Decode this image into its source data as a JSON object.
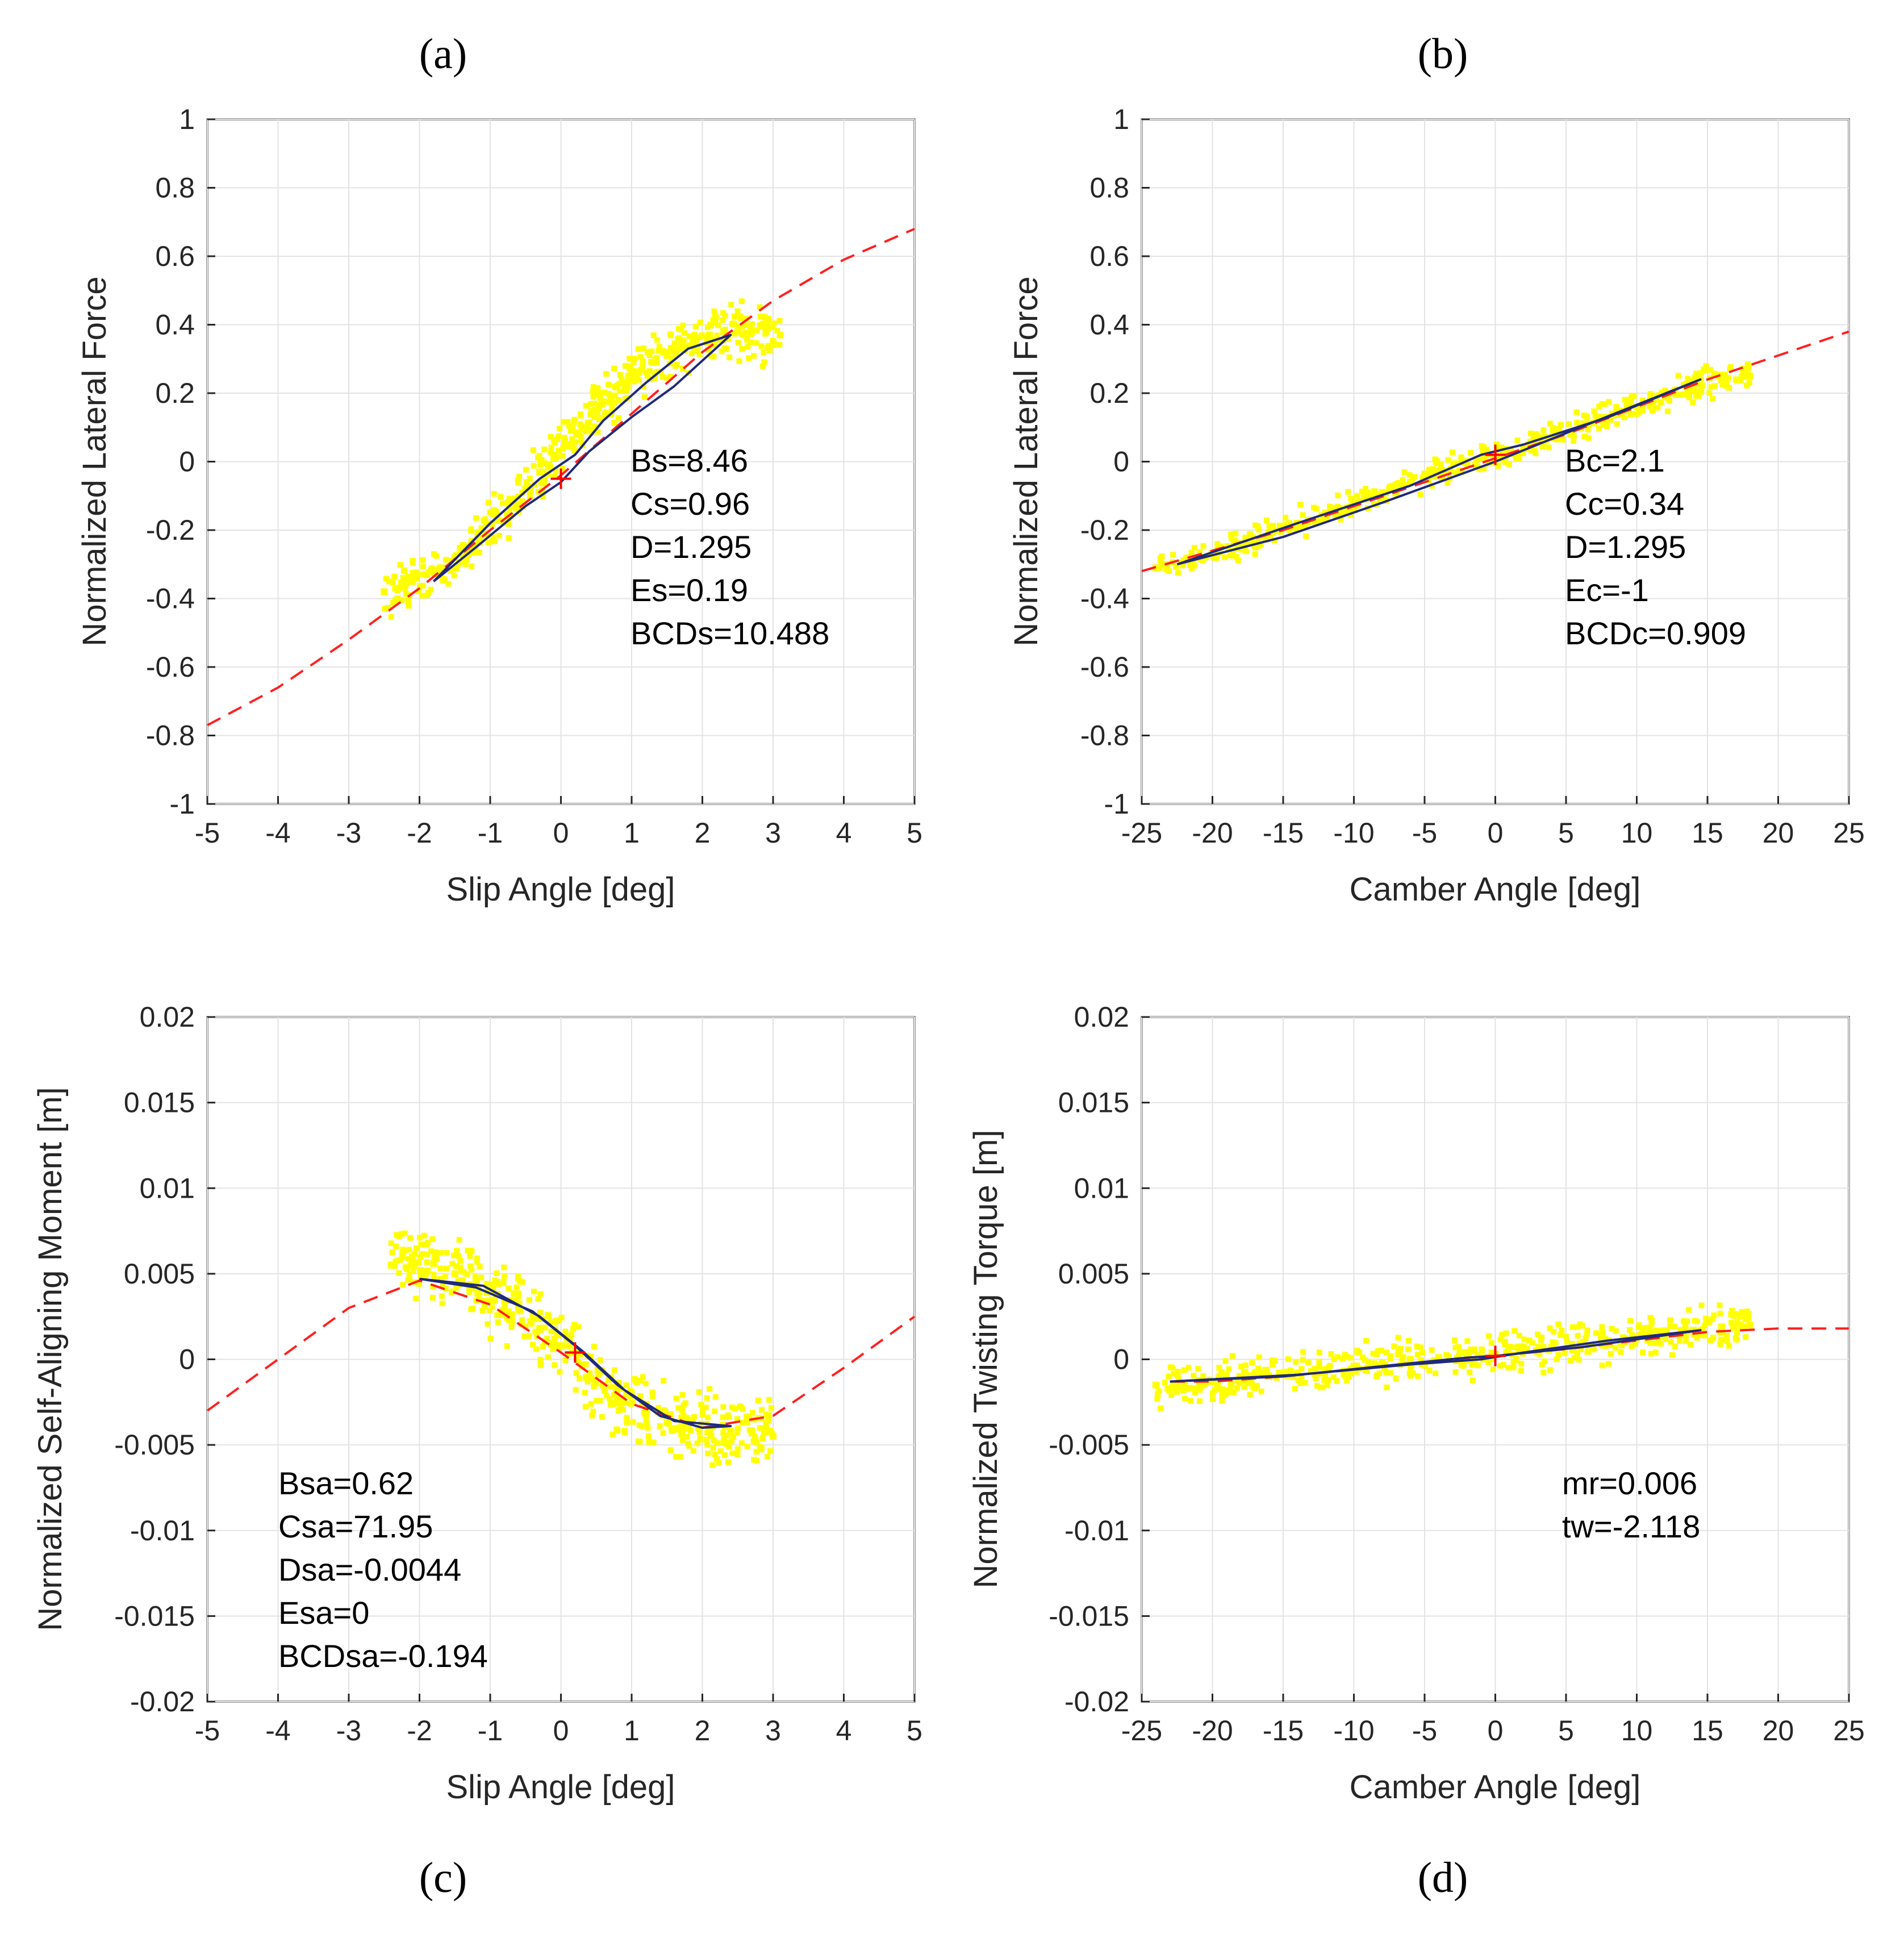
{
  "panels": [
    {
      "id": "a",
      "letter": "(a)",
      "xlabel": "Slip Angle [deg]",
      "ylabel": "Normalized Lateral Force",
      "xlim": [
        -5,
        5
      ],
      "ylim": [
        -1,
        1
      ],
      "xticks": [
        -5,
        -4,
        -3,
        -2,
        -1,
        0,
        1,
        2,
        3,
        4,
        5
      ],
      "yticks": [
        -1,
        -0.8,
        -0.6,
        -0.4,
        -0.2,
        0,
        0.2,
        0.4,
        0.6,
        0.8,
        1
      ],
      "xtick_labels": [
        "-5",
        "-4",
        "-3",
        "-2",
        "-1",
        "0",
        "1",
        "2",
        "3",
        "4",
        "5"
      ],
      "ytick_labels": [
        "-1",
        "-0.8",
        "-0.6",
        "-0.4",
        "-0.2",
        "0",
        "0.2",
        "0.4",
        "0.6",
        "0.8",
        "1"
      ],
      "annotation": [
        "Bs=8.46",
        "Cs=0.96",
        "D=1.295",
        "Es=0.19",
        "BCDs=10.488"
      ]
    },
    {
      "id": "b",
      "letter": "(b)",
      "xlabel": "Camber Angle [deg]",
      "ylabel": "Normalized Lateral Force",
      "xlim": [
        -25,
        25
      ],
      "ylim": [
        -1,
        1
      ],
      "xticks": [
        -25,
        -20,
        -15,
        -10,
        -5,
        0,
        5,
        10,
        15,
        20,
        25
      ],
      "yticks": [
        -1,
        -0.8,
        -0.6,
        -0.4,
        -0.2,
        0,
        0.2,
        0.4,
        0.6,
        0.8,
        1
      ],
      "xtick_labels": [
        "-25",
        "-20",
        "-15",
        "-10",
        "-5",
        "0",
        "5",
        "10",
        "15",
        "20",
        "25"
      ],
      "ytick_labels": [
        "-1",
        "-0.8",
        "-0.6",
        "-0.4",
        "-0.2",
        "0",
        "0.2",
        "0.4",
        "0.6",
        "0.8",
        "1"
      ],
      "annotation": [
        "Bc=2.1",
        "Cc=0.34",
        "D=1.295",
        "Ec=-1",
        "BCDc=0.909"
      ]
    },
    {
      "id": "c",
      "letter": "(c)",
      "xlabel": "Slip Angle [deg]",
      "ylabel": "Normalized Self-Aligning Moment [m]",
      "xlim": [
        -5,
        5
      ],
      "ylim": [
        -0.02,
        0.02
      ],
      "xticks": [
        -5,
        -4,
        -3,
        -2,
        -1,
        0,
        1,
        2,
        3,
        4,
        5
      ],
      "yticks": [
        -0.02,
        -0.015,
        -0.01,
        -0.005,
        0,
        0.005,
        0.01,
        0.015,
        0.02
      ],
      "xtick_labels": [
        "-5",
        "-4",
        "-3",
        "-2",
        "-1",
        "0",
        "1",
        "2",
        "3",
        "4",
        "5"
      ],
      "ytick_labels": [
        "-0.02",
        "-0.015",
        "-0.01",
        "-0.005",
        "0",
        "0.005",
        "0.01",
        "0.015",
        "0.02"
      ],
      "annotation": [
        "Bsa=0.62",
        "Csa=71.95",
        "Dsa=-0.0044",
        "Esa=0",
        "BCDsa=-0.194"
      ]
    },
    {
      "id": "d",
      "letter": "(d)",
      "xlabel": "Camber Angle [deg]",
      "ylabel": "Normalized Twisting Torque [m]",
      "xlim": [
        -25,
        25
      ],
      "ylim": [
        -0.02,
        0.02
      ],
      "xticks": [
        -25,
        -20,
        -15,
        -10,
        -5,
        0,
        5,
        10,
        15,
        20,
        25
      ],
      "yticks": [
        -0.02,
        -0.015,
        -0.01,
        -0.005,
        0,
        0.005,
        0.01,
        0.015,
        0.02
      ],
      "xtick_labels": [
        "-25",
        "-20",
        "-15",
        "-10",
        "-5",
        "0",
        "5",
        "10",
        "15",
        "20",
        "25"
      ],
      "ytick_labels": [
        "-0.02",
        "-0.015",
        "-0.01",
        "-0.005",
        "0",
        "0.005",
        "0.01",
        "0.015",
        "0.02"
      ],
      "annotation": [
        "mr=0.006",
        "tw=-2.118"
      ]
    }
  ],
  "colors": {
    "scatter": "#ffff00",
    "fit": "#ff2020",
    "loop": "#1f2a7a",
    "grid": "#e3e3e3",
    "axes": "#262626",
    "marker": "#ff0000"
  },
  "chart_data": [
    {
      "type": "scatter",
      "panel": "a",
      "xlabel": "Slip Angle [deg]",
      "ylabel": "Normalized Lateral Force",
      "xlim": [
        -5,
        5
      ],
      "ylim": [
        -1,
        1
      ],
      "grid": true,
      "series": [
        {
          "name": "",
          "kind": "scatter",
          "color": "#ffff00",
          "x": [
            -2.5,
            -2.3,
            -2.1,
            -1.9,
            -1.7,
            -1.5,
            -1.3,
            -1.1,
            -0.9,
            -0.7,
            -0.5,
            -0.3,
            -0.1,
            0.1,
            0.3,
            0.5,
            0.7,
            0.9,
            1.1,
            1.3,
            1.5,
            1.7,
            1.9,
            2.1,
            2.3,
            2.5,
            2.7,
            2.9,
            3.1
          ],
          "y": [
            -0.38,
            -0.37,
            -0.35,
            -0.33,
            -0.31,
            -0.28,
            -0.25,
            -0.21,
            -0.17,
            -0.13,
            -0.08,
            -0.03,
            0.01,
            0.05,
            0.1,
            0.15,
            0.19,
            0.23,
            0.26,
            0.29,
            0.31,
            0.33,
            0.35,
            0.37,
            0.38,
            0.38,
            0.38,
            0.38,
            0.37
          ]
        },
        {
          "name": "",
          "kind": "fit-dashed",
          "color": "#ff2020",
          "x": [
            -5,
            -4,
            -3,
            -2,
            -1,
            0,
            1,
            2,
            3,
            4,
            5
          ],
          "y": [
            -0.77,
            -0.66,
            -0.52,
            -0.37,
            -0.2,
            -0.04,
            0.14,
            0.32,
            0.47,
            0.59,
            0.68
          ]
        },
        {
          "name": "",
          "kind": "loop",
          "color": "#1f2a7a",
          "x": [
            -1.8,
            -1.2,
            -0.5,
            0.0,
            0.4,
            1.0,
            1.6,
            2.4,
            1.8,
            1.2,
            0.6,
            0.2,
            -0.3,
            -1.0,
            -1.8
          ],
          "y": [
            -0.35,
            -0.25,
            -0.13,
            -0.06,
            0.03,
            0.13,
            0.22,
            0.37,
            0.33,
            0.23,
            0.12,
            0.02,
            -0.05,
            -0.18,
            -0.35
          ]
        }
      ],
      "markers": [
        {
          "x": 0,
          "y": -0.05
        }
      ],
      "annotation": [
        "Bs=8.46",
        "Cs=0.96",
        "D=1.295",
        "Es=0.19",
        "BCDs=10.488"
      ]
    },
    {
      "type": "scatter",
      "panel": "b",
      "xlabel": "Camber Angle [deg]",
      "ylabel": "Normalized Lateral Force",
      "xlim": [
        -25,
        25
      ],
      "ylim": [
        -1,
        1
      ],
      "grid": true,
      "series": [
        {
          "name": "",
          "kind": "scatter",
          "color": "#ffff00",
          "x": [
            -24,
            -22,
            -20,
            -18,
            -16,
            -14,
            -12,
            -10,
            -8,
            -6,
            -4,
            -2,
            0,
            2,
            4,
            6,
            8,
            10,
            12,
            14,
            16,
            18
          ],
          "y": [
            -0.31,
            -0.29,
            -0.27,
            -0.24,
            -0.21,
            -0.18,
            -0.15,
            -0.12,
            -0.09,
            -0.06,
            -0.03,
            0.0,
            0.02,
            0.04,
            0.07,
            0.1,
            0.13,
            0.16,
            0.19,
            0.22,
            0.24,
            0.25
          ]
        },
        {
          "name": "",
          "kind": "fit-dashed",
          "color": "#ff2020",
          "x": [
            -25,
            -20,
            -15,
            -10,
            -5,
            0,
            5,
            10,
            15,
            20,
            25
          ],
          "y": [
            -0.32,
            -0.26,
            -0.2,
            -0.13,
            -0.06,
            0.01,
            0.08,
            0.16,
            0.24,
            0.31,
            0.38
          ]
        },
        {
          "name": "",
          "kind": "loop",
          "color": "#1f2a7a",
          "x": [
            -22.5,
            -15,
            -8,
            -2,
            0,
            6,
            14.5,
            8,
            2,
            -1,
            -6,
            -14,
            -22.5
          ],
          "y": [
            -0.3,
            -0.22,
            -0.12,
            -0.03,
            0.0,
            0.1,
            0.24,
            0.13,
            0.05,
            0.02,
            -0.07,
            -0.18,
            -0.3
          ]
        }
      ],
      "markers": [
        {
          "x": 0,
          "y": 0.02
        }
      ],
      "annotation": [
        "Bc=2.1",
        "Cc=0.34",
        "D=1.295",
        "Ec=-1",
        "BCDc=0.909"
      ]
    },
    {
      "type": "scatter",
      "panel": "c",
      "xlabel": "Slip Angle [deg]",
      "ylabel": "Normalized Self-Aligning Moment [m]",
      "xlim": [
        -5,
        5
      ],
      "ylim": [
        -0.02,
        0.02
      ],
      "grid": true,
      "series": [
        {
          "name": "",
          "kind": "scatter",
          "color": "#ffff00",
          "x": [
            -2.4,
            -2.1,
            -1.8,
            -1.5,
            -1.2,
            -0.9,
            -0.6,
            -0.3,
            0.0,
            0.3,
            0.6,
            0.9,
            1.2,
            1.5,
            1.8,
            2.1,
            2.4,
            2.7,
            3.0
          ],
          "y": [
            0.0055,
            0.0058,
            0.0056,
            0.005,
            0.0045,
            0.0038,
            0.003,
            0.0018,
            0.0008,
            -0.0004,
            -0.0015,
            -0.0025,
            -0.0032,
            -0.0037,
            -0.004,
            -0.0042,
            -0.0042,
            -0.0043,
            -0.0045
          ]
        },
        {
          "name": "",
          "kind": "fit-dashed",
          "color": "#ff2020",
          "x": [
            -5,
            -4,
            -3,
            -2,
            -1,
            0,
            1,
            2,
            3,
            4,
            5
          ],
          "y": [
            -0.003,
            0.0,
            0.003,
            0.0046,
            0.0032,
            0.0004,
            -0.0026,
            -0.004,
            -0.0033,
            -0.0005,
            0.0025
          ]
        },
        {
          "name": "",
          "kind": "loop",
          "color": "#1f2a7a",
          "x": [
            -2.0,
            -1.2,
            -0.4,
            0.2,
            0.8,
            1.4,
            2.0,
            2.4,
            1.6,
            0.9,
            0.3,
            -0.3,
            -1.1,
            -2.0
          ],
          "y": [
            0.0047,
            0.0042,
            0.0028,
            0.0008,
            -0.0015,
            -0.0033,
            -0.004,
            -0.0039,
            -0.0036,
            -0.0018,
            0.0005,
            0.0025,
            0.0043,
            0.0047
          ]
        }
      ],
      "markers": [
        {
          "x": 0.2,
          "y": 0.0004
        }
      ],
      "annotation": [
        "Bsa=0.62",
        "Csa=71.95",
        "Dsa=-0.0044",
        "Esa=0",
        "BCDsa=-0.194"
      ]
    },
    {
      "type": "scatter",
      "panel": "d",
      "xlabel": "Camber Angle [deg]",
      "ylabel": "Normalized Twisting Torque [m]",
      "xlim": [
        -25,
        25
      ],
      "ylim": [
        -0.02,
        0.02
      ],
      "grid": true,
      "series": [
        {
          "name": "",
          "kind": "scatter",
          "color": "#ffff00",
          "x": [
            -24,
            -22,
            -20,
            -18,
            -16,
            -14,
            -12,
            -10,
            -8,
            -6,
            -4,
            -2,
            0,
            2,
            4,
            6,
            8,
            10,
            12,
            14,
            16,
            18
          ],
          "y": [
            -0.0015,
            -0.0014,
            -0.0013,
            -0.0012,
            -0.001,
            -0.0008,
            -0.0006,
            -0.0004,
            -0.0002,
            0.0,
            0.0001,
            0.0002,
            0.0003,
            0.0005,
            0.0007,
            0.0009,
            0.0011,
            0.0013,
            0.0015,
            0.0017,
            0.0019,
            0.002
          ]
        },
        {
          "name": "",
          "kind": "fit-dashed",
          "color": "#ff2020",
          "x": [
            -23,
            -20,
            -15,
            -10,
            -5,
            0,
            5,
            10,
            15,
            20,
            25
          ],
          "y": [
            -0.0013,
            -0.0013,
            -0.001,
            -0.0006,
            -0.0002,
            0.0002,
            0.0006,
            0.0011,
            0.0016,
            0.0018,
            0.0018
          ]
        },
        {
          "name": "",
          "kind": "loop",
          "color": "#1f2a7a",
          "x": [
            -23,
            -15,
            -8,
            -2,
            0,
            6,
            14.5,
            8,
            2,
            -1,
            -6,
            -14,
            -23
          ],
          "y": [
            -0.0013,
            -0.001,
            -0.0004,
            0.0001,
            0.0002,
            0.0007,
            0.0017,
            0.0011,
            0.0004,
            0.0,
            -0.0003,
            -0.0009,
            -0.0013
          ]
        }
      ],
      "markers": [
        {
          "x": 0,
          "y": 0.0002
        }
      ],
      "annotation": [
        "mr=0.006",
        "tw=-2.118"
      ]
    }
  ]
}
